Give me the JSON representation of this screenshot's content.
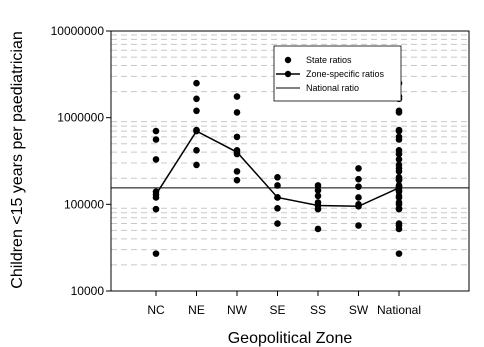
{
  "chart_data": {
    "type": "scatter",
    "xlabel": "Geopolitical Zone",
    "ylabel": "Children <15 years per paediatrician",
    "yscale": "log",
    "ylim": [
      10000,
      10000000
    ],
    "grid": "horizontal dashed minor gridlines",
    "legend_position": "top-right",
    "categories": [
      "NC",
      "NE",
      "NW",
      "SE",
      "SS",
      "SW",
      "National"
    ],
    "y_ticks": [
      "10000",
      "100000",
      "1000000",
      "10000000"
    ],
    "series": [
      {
        "name": "State ratios",
        "marker": "dot",
        "points": [
          [
            "NC",
            700000
          ],
          [
            "NC",
            560000
          ],
          [
            "NC",
            330000
          ],
          [
            "NC",
            140000
          ],
          [
            "NC",
            120000
          ],
          [
            "NC",
            88000
          ],
          [
            "NC",
            27000
          ],
          [
            "NE",
            2500000
          ],
          [
            "NE",
            1650000
          ],
          [
            "NE",
            1200000
          ],
          [
            "NE",
            720000
          ],
          [
            "NE",
            420000
          ],
          [
            "NE",
            285000
          ],
          [
            "NW",
            1750000
          ],
          [
            "NW",
            1150000
          ],
          [
            "NW",
            600000
          ],
          [
            "NW",
            420000
          ],
          [
            "NW",
            380000
          ],
          [
            "NW",
            240000
          ],
          [
            "NW",
            190000
          ],
          [
            "SE",
            205000
          ],
          [
            "SE",
            165000
          ],
          [
            "SE",
            120000
          ],
          [
            "SE",
            90000
          ],
          [
            "SE",
            60000
          ],
          [
            "SS",
            165000
          ],
          [
            "SS",
            145000
          ],
          [
            "SS",
            125000
          ],
          [
            "SS",
            105000
          ],
          [
            "SS",
            88000
          ],
          [
            "SS",
            52000
          ],
          [
            "SW",
            260000
          ],
          [
            "SW",
            195000
          ],
          [
            "SW",
            160000
          ],
          [
            "SW",
            120000
          ],
          [
            "SW",
            100000
          ],
          [
            "SW",
            57000
          ],
          [
            "National",
            2500000
          ],
          [
            "National",
            1750000
          ],
          [
            "National",
            1650000
          ],
          [
            "National",
            1200000
          ],
          [
            "National",
            1150000
          ],
          [
            "National",
            720000
          ],
          [
            "National",
            700000
          ],
          [
            "National",
            600000
          ],
          [
            "National",
            560000
          ],
          [
            "National",
            420000
          ],
          [
            "National",
            380000
          ],
          [
            "National",
            330000
          ],
          [
            "National",
            285000
          ],
          [
            "National",
            260000
          ],
          [
            "National",
            240000
          ],
          [
            "National",
            205000
          ],
          [
            "National",
            195000
          ],
          [
            "National",
            190000
          ],
          [
            "National",
            165000
          ],
          [
            "National",
            160000
          ],
          [
            "National",
            145000
          ],
          [
            "National",
            140000
          ],
          [
            "National",
            125000
          ],
          [
            "National",
            120000
          ],
          [
            "National",
            105000
          ],
          [
            "National",
            100000
          ],
          [
            "National",
            90000
          ],
          [
            "National",
            88000
          ],
          [
            "National",
            60000
          ],
          [
            "National",
            57000
          ],
          [
            "National",
            52000
          ],
          [
            "National",
            27000
          ]
        ]
      },
      {
        "name": "Zone-specific ratios",
        "marker": "dot-line",
        "points": [
          [
            "NC",
            130000
          ],
          [
            "NE",
            700000
          ],
          [
            "NW",
            400000
          ],
          [
            "SE",
            120000
          ],
          [
            "SS",
            97000
          ],
          [
            "SW",
            95000
          ],
          [
            "National",
            155000
          ]
        ]
      },
      {
        "name": "National ratio",
        "marker": "line",
        "value": 155000
      }
    ]
  }
}
